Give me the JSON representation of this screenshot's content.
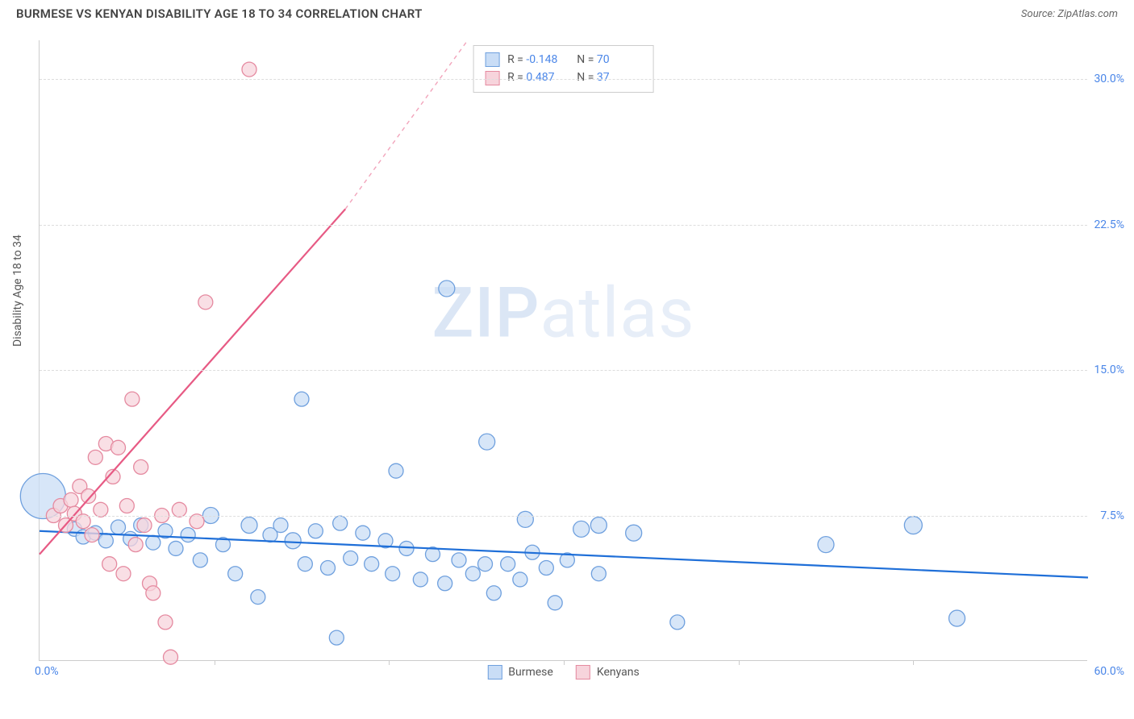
{
  "header": {
    "title": "BURMESE VS KENYAN DISABILITY AGE 18 TO 34 CORRELATION CHART",
    "source_label": "Source: ZipAtlas.com"
  },
  "watermark": {
    "zip": "ZIP",
    "atlas": "atlas"
  },
  "chart": {
    "type": "scatter",
    "ylabel": "Disability Age 18 to 34",
    "xlim": [
      0,
      60
    ],
    "ylim": [
      0,
      32
    ],
    "x_tick_origin": "0.0%",
    "x_tick_end": "60.0%",
    "x_minor_ticks": [
      10,
      20,
      30,
      40,
      50
    ],
    "y_ticks": [
      {
        "v": 7.5,
        "label": "7.5%"
      },
      {
        "v": 15.0,
        "label": "15.0%"
      },
      {
        "v": 22.5,
        "label": "22.5%"
      },
      {
        "v": 30.0,
        "label": "30.0%"
      }
    ],
    "grid_color": "#dddddd",
    "axis_color": "#cccccc",
    "background_color": "#ffffff",
    "tick_label_color": "#4a86e8",
    "series": [
      {
        "name": "Burmese",
        "fill": "#c9ddf6",
        "stroke": "#6fa0de",
        "line_color": "#1f6fd8",
        "line_width": 2.2,
        "r_value": "-0.148",
        "n_value": "70",
        "trend": {
          "x1": 0,
          "y1": 6.7,
          "x2": 60,
          "y2": 4.3
        },
        "points": [
          {
            "x": 0.2,
            "y": 8.5,
            "r": 28
          },
          {
            "x": 2.0,
            "y": 6.8,
            "r": 9
          },
          {
            "x": 2.5,
            "y": 6.4,
            "r": 9
          },
          {
            "x": 3.2,
            "y": 6.6,
            "r": 9
          },
          {
            "x": 3.8,
            "y": 6.2,
            "r": 9
          },
          {
            "x": 4.5,
            "y": 6.9,
            "r": 9
          },
          {
            "x": 5.2,
            "y": 6.3,
            "r": 9
          },
          {
            "x": 5.8,
            "y": 7.0,
            "r": 9
          },
          {
            "x": 6.5,
            "y": 6.1,
            "r": 9
          },
          {
            "x": 7.2,
            "y": 6.7,
            "r": 9
          },
          {
            "x": 7.8,
            "y": 5.8,
            "r": 9
          },
          {
            "x": 8.5,
            "y": 6.5,
            "r": 9
          },
          {
            "x": 9.2,
            "y": 5.2,
            "r": 9
          },
          {
            "x": 9.8,
            "y": 7.5,
            "r": 10
          },
          {
            "x": 10.5,
            "y": 6.0,
            "r": 9
          },
          {
            "x": 11.2,
            "y": 4.5,
            "r": 9
          },
          {
            "x": 12.0,
            "y": 7.0,
            "r": 10
          },
          {
            "x": 12.5,
            "y": 3.3,
            "r": 9
          },
          {
            "x": 13.2,
            "y": 6.5,
            "r": 9
          },
          {
            "x": 13.8,
            "y": 7.0,
            "r": 9
          },
          {
            "x": 14.5,
            "y": 6.2,
            "r": 10
          },
          {
            "x": 15.0,
            "y": 13.5,
            "r": 9
          },
          {
            "x": 15.2,
            "y": 5.0,
            "r": 9
          },
          {
            "x": 15.8,
            "y": 6.7,
            "r": 9
          },
          {
            "x": 16.5,
            "y": 4.8,
            "r": 9
          },
          {
            "x": 17.0,
            "y": 1.2,
            "r": 9
          },
          {
            "x": 17.2,
            "y": 7.1,
            "r": 9
          },
          {
            "x": 17.8,
            "y": 5.3,
            "r": 9
          },
          {
            "x": 18.5,
            "y": 6.6,
            "r": 9
          },
          {
            "x": 19.0,
            "y": 5.0,
            "r": 9
          },
          {
            "x": 19.8,
            "y": 6.2,
            "r": 9
          },
          {
            "x": 20.2,
            "y": 4.5,
            "r": 9
          },
          {
            "x": 20.4,
            "y": 9.8,
            "r": 9
          },
          {
            "x": 21.0,
            "y": 5.8,
            "r": 9
          },
          {
            "x": 21.8,
            "y": 4.2,
            "r": 9
          },
          {
            "x": 22.5,
            "y": 5.5,
            "r": 9
          },
          {
            "x": 23.2,
            "y": 4.0,
            "r": 9
          },
          {
            "x": 23.3,
            "y": 19.2,
            "r": 10
          },
          {
            "x": 24.0,
            "y": 5.2,
            "r": 9
          },
          {
            "x": 24.8,
            "y": 4.5,
            "r": 9
          },
          {
            "x": 25.5,
            "y": 5.0,
            "r": 9
          },
          {
            "x": 25.6,
            "y": 11.3,
            "r": 10
          },
          {
            "x": 26.0,
            "y": 3.5,
            "r": 9
          },
          {
            "x": 26.8,
            "y": 5.0,
            "r": 9
          },
          {
            "x": 27.5,
            "y": 4.2,
            "r": 9
          },
          {
            "x": 27.8,
            "y": 7.3,
            "r": 10
          },
          {
            "x": 28.2,
            "y": 5.6,
            "r": 9
          },
          {
            "x": 29.0,
            "y": 4.8,
            "r": 9
          },
          {
            "x": 29.5,
            "y": 3.0,
            "r": 9
          },
          {
            "x": 30.2,
            "y": 5.2,
            "r": 9
          },
          {
            "x": 31.0,
            "y": 6.8,
            "r": 10
          },
          {
            "x": 32.0,
            "y": 4.5,
            "r": 9
          },
          {
            "x": 32.0,
            "y": 7.0,
            "r": 10
          },
          {
            "x": 34.0,
            "y": 6.6,
            "r": 10
          },
          {
            "x": 36.5,
            "y": 2.0,
            "r": 9
          },
          {
            "x": 45.0,
            "y": 6.0,
            "r": 10
          },
          {
            "x": 50.0,
            "y": 7.0,
            "r": 11
          },
          {
            "x": 52.5,
            "y": 2.2,
            "r": 10
          }
        ]
      },
      {
        "name": "Kenyans",
        "fill": "#f7d4dc",
        "stroke": "#e58aa0",
        "line_color": "#e75a84",
        "line_width": 2.2,
        "r_value": "0.487",
        "n_value": "37",
        "trend": {
          "x1": 0,
          "y1": 5.5,
          "x2": 17.5,
          "y2": 23.3
        },
        "trend_extend": {
          "x1": 17.5,
          "y1": 23.3,
          "x2": 24.5,
          "y2": 32
        },
        "points": [
          {
            "x": 0.8,
            "y": 7.5,
            "r": 9
          },
          {
            "x": 1.2,
            "y": 8.0,
            "r": 9
          },
          {
            "x": 1.5,
            "y": 7.0,
            "r": 9
          },
          {
            "x": 1.8,
            "y": 8.3,
            "r": 9
          },
          {
            "x": 2.0,
            "y": 7.6,
            "r": 9
          },
          {
            "x": 2.3,
            "y": 9.0,
            "r": 9
          },
          {
            "x": 2.5,
            "y": 7.2,
            "r": 9
          },
          {
            "x": 2.8,
            "y": 8.5,
            "r": 9
          },
          {
            "x": 3.0,
            "y": 6.5,
            "r": 9
          },
          {
            "x": 3.2,
            "y": 10.5,
            "r": 9
          },
          {
            "x": 3.5,
            "y": 7.8,
            "r": 9
          },
          {
            "x": 3.8,
            "y": 11.2,
            "r": 9
          },
          {
            "x": 4.0,
            "y": 5.0,
            "r": 9
          },
          {
            "x": 4.2,
            "y": 9.5,
            "r": 9
          },
          {
            "x": 4.5,
            "y": 11.0,
            "r": 9
          },
          {
            "x": 4.8,
            "y": 4.5,
            "r": 9
          },
          {
            "x": 5.0,
            "y": 8.0,
            "r": 9
          },
          {
            "x": 5.3,
            "y": 13.5,
            "r": 9
          },
          {
            "x": 5.5,
            "y": 6.0,
            "r": 9
          },
          {
            "x": 5.8,
            "y": 10.0,
            "r": 9
          },
          {
            "x": 6.0,
            "y": 7.0,
            "r": 9
          },
          {
            "x": 6.3,
            "y": 4.0,
            "r": 9
          },
          {
            "x": 6.5,
            "y": 3.5,
            "r": 9
          },
          {
            "x": 7.0,
            "y": 7.5,
            "r": 9
          },
          {
            "x": 7.2,
            "y": 2.0,
            "r": 9
          },
          {
            "x": 7.5,
            "y": 0.2,
            "r": 9
          },
          {
            "x": 8.0,
            "y": 7.8,
            "r": 9
          },
          {
            "x": 9.0,
            "y": 7.2,
            "r": 9
          },
          {
            "x": 9.5,
            "y": 18.5,
            "r": 9
          },
          {
            "x": 12.0,
            "y": 30.5,
            "r": 9
          }
        ]
      }
    ]
  },
  "legend_bottom": [
    {
      "label": "Burmese",
      "fill": "#c9ddf6",
      "stroke": "#6fa0de"
    },
    {
      "label": "Kenyans",
      "fill": "#f7d4dc",
      "stroke": "#e58aa0"
    }
  ]
}
